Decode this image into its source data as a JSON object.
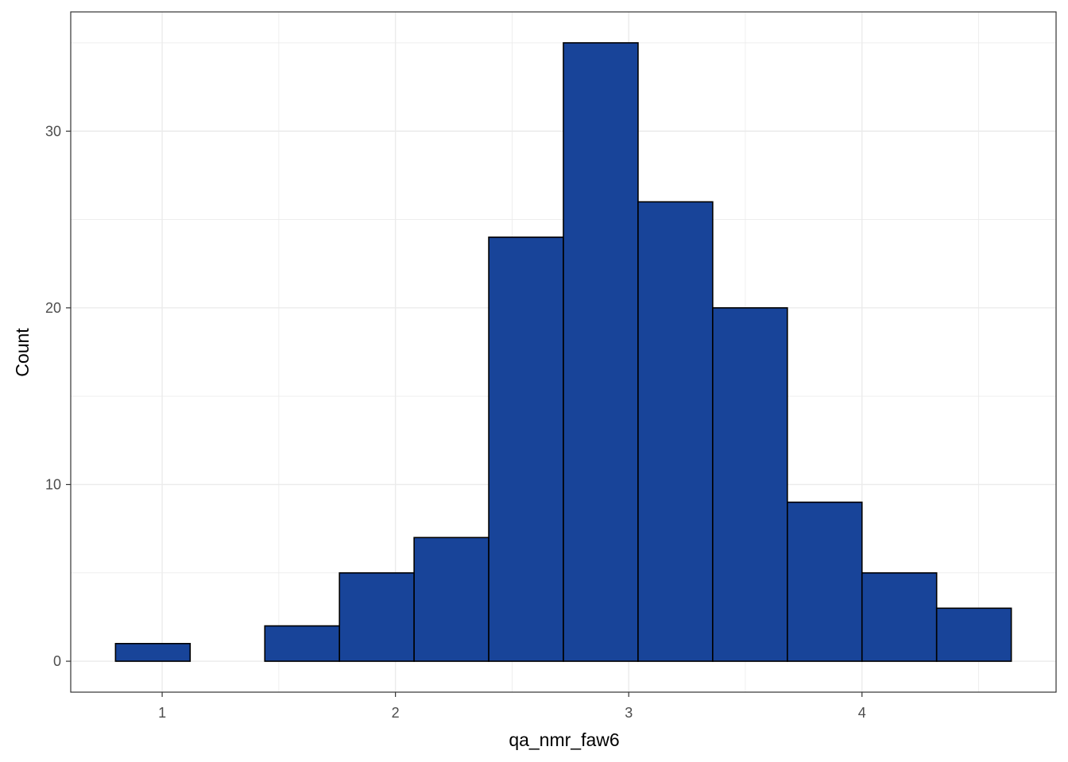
{
  "chart_data": {
    "type": "histogram",
    "title": "",
    "xlabel": "qa_nmr_faw6",
    "ylabel": "Count",
    "bin_width": 0.32,
    "bins": [
      {
        "x0": 0.8,
        "x1": 1.12,
        "count": 1
      },
      {
        "x0": 1.12,
        "x1": 1.44,
        "count": 0
      },
      {
        "x0": 1.44,
        "x1": 1.76,
        "count": 2
      },
      {
        "x0": 1.76,
        "x1": 2.08,
        "count": 5
      },
      {
        "x0": 2.08,
        "x1": 2.4,
        "count": 7
      },
      {
        "x0": 2.4,
        "x1": 2.72,
        "count": 24
      },
      {
        "x0": 2.72,
        "x1": 3.04,
        "count": 35
      },
      {
        "x0": 3.04,
        "x1": 3.36,
        "count": 26
      },
      {
        "x0": 3.36,
        "x1": 3.68,
        "count": 20
      },
      {
        "x0": 3.68,
        "x1": 4.0,
        "count": 9
      },
      {
        "x0": 4.0,
        "x1": 4.32,
        "count": 5
      },
      {
        "x0": 4.32,
        "x1": 4.64,
        "count": 3
      }
    ],
    "x_ticks": [
      1,
      2,
      3,
      4
    ],
    "x_tick_labels": [
      "1",
      "2",
      "3",
      "4"
    ],
    "y_ticks": [
      0,
      10,
      20,
      30
    ],
    "y_tick_labels": [
      "0",
      "10",
      "20",
      "30"
    ],
    "xlim": [
      0.608,
      4.832
    ],
    "ylim": [
      -1.75,
      36.75
    ],
    "grid": true,
    "legend": "none",
    "bar_fill": "#184499",
    "bar_stroke": "#000000",
    "grid_color": "#ebebeb",
    "panel_border": "#333333"
  }
}
